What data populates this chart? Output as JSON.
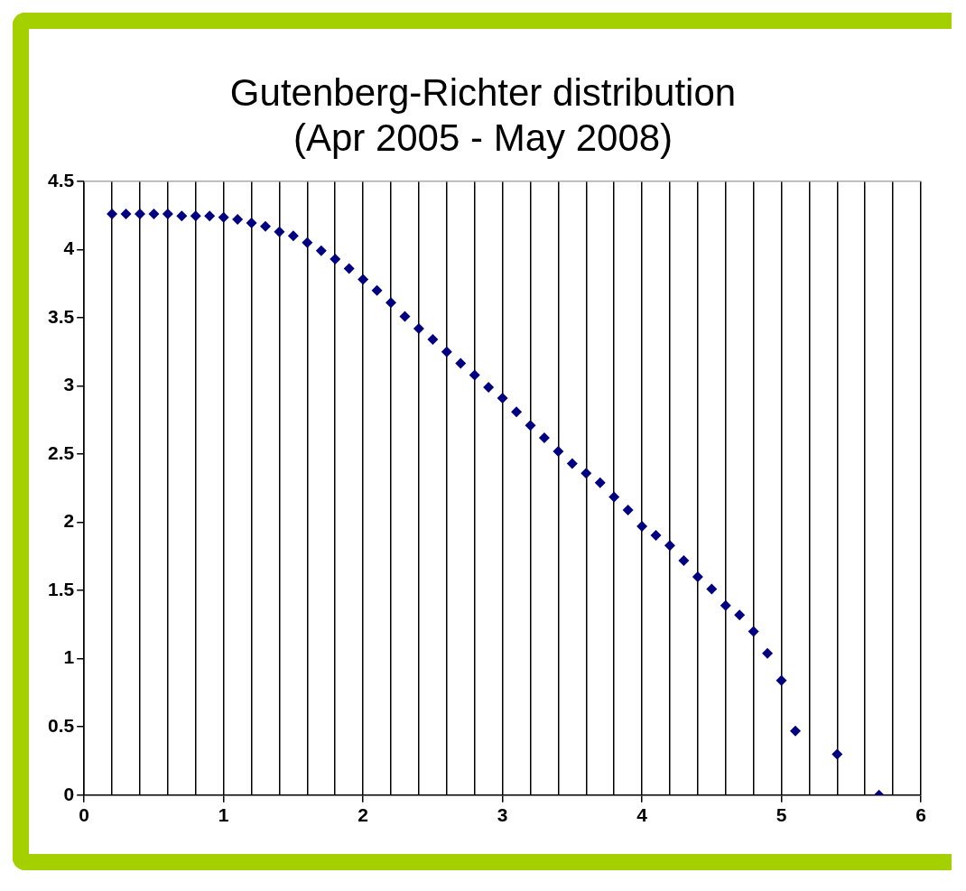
{
  "chart_data": {
    "type": "scatter",
    "title": [
      "Gutenberg-Richter distribution",
      "(Apr 2005 - May 2008)"
    ],
    "x": [
      0.2,
      0.3,
      0.4,
      0.5,
      0.6,
      0.7,
      0.8,
      0.9,
      1.0,
      1.1,
      1.2,
      1.3,
      1.4,
      1.5,
      1.6,
      1.7,
      1.8,
      1.9,
      2.0,
      2.1,
      2.2,
      2.3,
      2.4,
      2.5,
      2.6,
      2.7,
      2.8,
      2.9,
      3.0,
      3.1,
      3.2,
      3.3,
      3.4,
      3.5,
      3.6,
      3.7,
      3.8,
      3.9,
      4.0,
      4.1,
      4.2,
      4.3,
      4.4,
      4.5,
      4.6,
      4.7,
      4.8,
      4.9,
      5.0,
      5.1,
      5.4,
      5.7
    ],
    "series": [
      {
        "color": "#000080",
        "values": [
          4.26,
          4.26,
          4.26,
          4.26,
          4.26,
          4.245,
          4.245,
          4.245,
          4.235,
          4.22,
          4.195,
          4.17,
          4.13,
          4.1,
          4.05,
          3.99,
          3.93,
          3.86,
          3.78,
          3.7,
          3.61,
          3.51,
          3.42,
          3.34,
          3.25,
          3.165,
          3.08,
          2.99,
          2.91,
          2.81,
          2.71,
          2.62,
          2.52,
          2.43,
          2.36,
          2.29,
          2.185,
          2.09,
          1.97,
          1.905,
          1.83,
          1.72,
          1.6,
          1.51,
          1.39,
          1.32,
          1.2,
          1.04,
          0.84,
          0.47,
          0.3,
          0.0
        ]
      }
    ],
    "xlim": [
      0,
      6
    ],
    "xticks": [
      0,
      {
        "value": 0.2,
        "label": null
      },
      {
        "value": 0.4,
        "label": null
      },
      {
        "value": 0.6,
        "label": null
      },
      {
        "value": 0.8,
        "label": null
      },
      1,
      {
        "value": 1.2,
        "label": null
      },
      {
        "value": 1.4,
        "label": null
      },
      {
        "value": 1.6,
        "label": null
      },
      {
        "value": 1.8,
        "label": null
      },
      2,
      {
        "value": 2.2,
        "label": null
      },
      {
        "value": 2.4,
        "label": null
      },
      {
        "value": 2.6,
        "label": null
      },
      {
        "value": 2.8,
        "label": null
      },
      3,
      {
        "value": 3.2,
        "label": null
      },
      {
        "value": 3.4,
        "label": null
      },
      {
        "value": 3.6,
        "label": null
      },
      {
        "value": 3.8,
        "label": null
      },
      4,
      {
        "value": 4.2,
        "label": null
      },
      {
        "value": 4.4,
        "label": null
      },
      {
        "value": 4.6,
        "label": null
      },
      {
        "value": 4.8,
        "label": null
      },
      5,
      {
        "value": 5.2,
        "label": null
      },
      {
        "value": 5.4,
        "label": null
      },
      {
        "value": 5.6,
        "label": null
      },
      {
        "value": 5.8,
        "label": null
      },
      6
    ],
    "ylim": [
      0,
      4.5
    ],
    "yticks": [
      0,
      0.5,
      1,
      1.5,
      2,
      2.5,
      3,
      3.5,
      4,
      4.5
    ],
    "grid": "x",
    "marker": "diamond",
    "legend": false
  }
}
